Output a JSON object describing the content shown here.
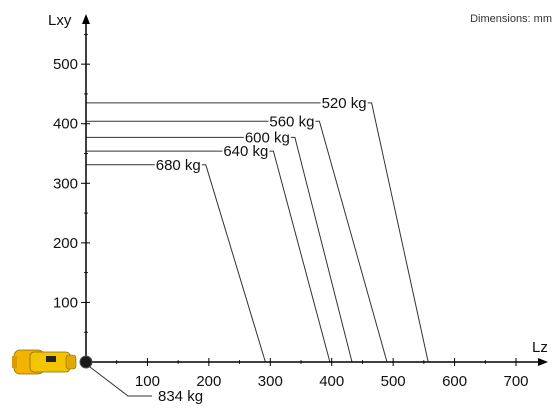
{
  "chart_data": {
    "type": "line",
    "note": "Dimensions: mm",
    "xlabel": "Lz",
    "ylabel": "Lxy",
    "xlim": [
      0,
      750
    ],
    "ylim": [
      0,
      550
    ],
    "xticks": [
      100,
      200,
      300,
      400,
      500,
      600,
      700
    ],
    "yticks": [
      100,
      200,
      300,
      400,
      500
    ],
    "series": [
      {
        "name": "520 kg",
        "points": [
          [
            0,
            435
          ],
          [
            465,
            435
          ],
          [
            557,
            0
          ]
        ]
      },
      {
        "name": "560 kg",
        "points": [
          [
            0,
            404
          ],
          [
            380,
            404
          ],
          [
            490,
            0
          ]
        ]
      },
      {
        "name": "600 kg",
        "points": [
          [
            0,
            377
          ],
          [
            340,
            377
          ],
          [
            433,
            0
          ]
        ]
      },
      {
        "name": "640 kg",
        "points": [
          [
            0,
            354
          ],
          [
            305,
            354
          ],
          [
            397,
            0
          ]
        ]
      },
      {
        "name": "680 kg",
        "points": [
          [
            0,
            331
          ],
          [
            195,
            331
          ],
          [
            292,
            0
          ]
        ]
      }
    ],
    "origin_label": "834 kg",
    "colors": {
      "lines": "#333333",
      "axes": "#000000",
      "robot_body": "#f2b400",
      "robot_joint": "#1a1a1a"
    }
  }
}
